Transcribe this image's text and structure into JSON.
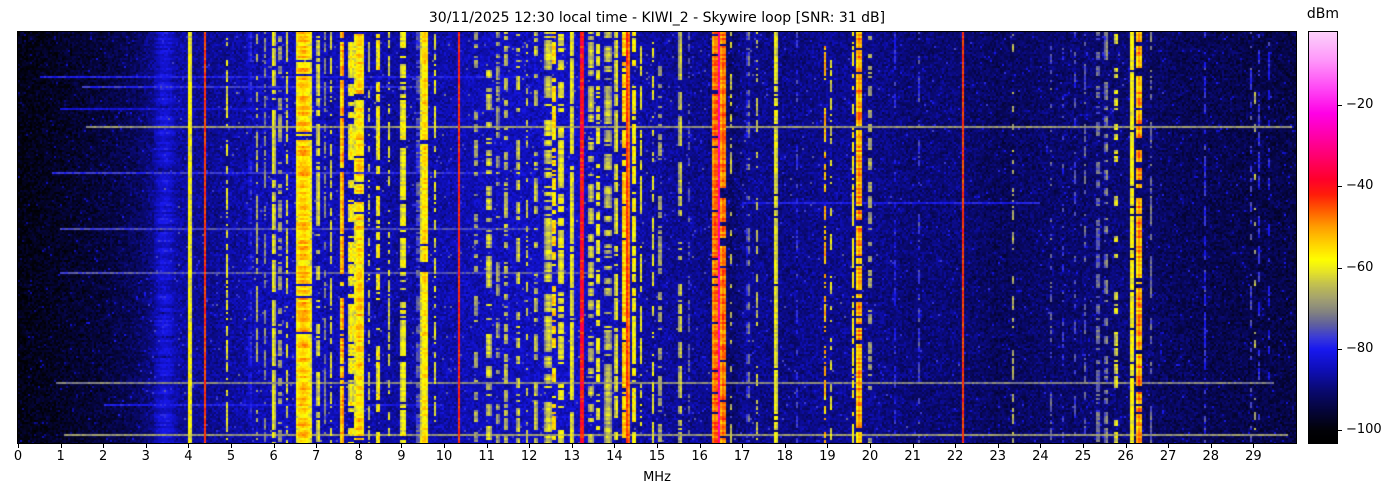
{
  "chart": {
    "title": "30/11/2025 12:30 local time - KIWI_2 - Skywire loop [SNR: 31 dB]",
    "xlabel": "MHz",
    "colorbar_label": "dBm"
  },
  "chart_data": {
    "type": "heatmap",
    "subtype": "radio-spectrum-waterfall",
    "title": "30/11/2025 12:30 local time - KIWI_2 - Skywire loop [SNR: 31 dB]",
    "station": "KIWI_2",
    "antenna": "Skywire loop",
    "snr_db": 31,
    "datetime_label": "30/11/2025 12:30 local time",
    "xlabel": "MHz",
    "ylabel": "",
    "x_range_mhz": [
      0,
      30
    ],
    "x_ticks": [
      0,
      1,
      2,
      3,
      4,
      5,
      6,
      7,
      8,
      9,
      10,
      11,
      12,
      13,
      14,
      15,
      16,
      17,
      18,
      19,
      20,
      21,
      22,
      23,
      24,
      25,
      26,
      27,
      28,
      29
    ],
    "colorbar": {
      "label": "dBm",
      "ticks": [
        -20,
        -40,
        -60,
        -80,
        -100
      ],
      "vmax": -2,
      "vmin": -103
    },
    "colormap_stops": [
      [
        -103,
        [
          0,
          0,
          0
        ]
      ],
      [
        -100,
        [
          2,
          2,
          8
        ]
      ],
      [
        -95,
        [
          5,
          5,
          60
        ]
      ],
      [
        -90,
        [
          10,
          10,
          115
        ]
      ],
      [
        -85,
        [
          15,
          15,
          185
        ]
      ],
      [
        -80,
        [
          25,
          25,
          240
        ]
      ],
      [
        -77,
        [
          60,
          60,
          215
        ]
      ],
      [
        -74,
        [
          95,
          95,
          160
        ]
      ],
      [
        -71,
        [
          130,
          130,
          130
        ]
      ],
      [
        -68,
        [
          160,
          158,
          115
        ]
      ],
      [
        -64,
        [
          195,
          193,
          80
        ]
      ],
      [
        -61,
        [
          230,
          228,
          40
        ]
      ],
      [
        -58,
        [
          255,
          255,
          0
        ]
      ],
      [
        -54,
        [
          255,
          210,
          0
        ]
      ],
      [
        -50,
        [
          255,
          160,
          0
        ]
      ],
      [
        -46,
        [
          255,
          95,
          0
        ]
      ],
      [
        -42,
        [
          255,
          30,
          10
        ]
      ],
      [
        -38,
        [
          255,
          0,
          45
        ]
      ],
      [
        -33,
        [
          255,
          0,
          105
        ]
      ],
      [
        -27,
        [
          255,
          0,
          175
        ]
      ],
      [
        -22,
        [
          255,
          0,
          230
        ]
      ],
      [
        -16,
        [
          255,
          70,
          245
        ]
      ],
      [
        -9,
        [
          255,
          150,
          250
        ]
      ],
      [
        -2,
        [
          252,
          210,
          250
        ]
      ]
    ],
    "noise_floor_dbm": [
      [
        0,
        -99
      ],
      [
        0.5,
        -98
      ],
      [
        1,
        -97
      ],
      [
        2,
        -95
      ],
      [
        2.8,
        -92
      ],
      [
        3.2,
        -88
      ],
      [
        3.8,
        -87
      ],
      [
        4.5,
        -88
      ],
      [
        5,
        -87
      ],
      [
        6,
        -85
      ],
      [
        7,
        -85
      ],
      [
        8,
        -86
      ],
      [
        9,
        -87
      ],
      [
        10,
        -86
      ],
      [
        11,
        -85
      ],
      [
        12,
        -84.5
      ],
      [
        13,
        -84
      ],
      [
        13.6,
        -85
      ],
      [
        14,
        -86
      ],
      [
        15,
        -87
      ],
      [
        15.7,
        -88
      ],
      [
        16.1,
        -88
      ],
      [
        16.75,
        -91
      ],
      [
        17.1,
        -88
      ],
      [
        18,
        -89
      ],
      [
        19,
        -88
      ],
      [
        20,
        -88.5
      ],
      [
        21,
        -90
      ],
      [
        22,
        -90
      ],
      [
        23,
        -92
      ],
      [
        24,
        -91
      ],
      [
        25,
        -90.5
      ],
      [
        26,
        -90
      ],
      [
        27,
        -92
      ],
      [
        28,
        -93
      ],
      [
        29,
        -93.5
      ],
      [
        30,
        -94
      ]
    ],
    "signals_format": "[center_mhz, half_width_mhz, level_dbm, duty_cycle, jitter_db]",
    "signals": [
      [
        3.45,
        0.28,
        -82,
        0.95,
        3
      ],
      [
        4.03,
        0.04,
        -57,
        1,
        3
      ],
      [
        4.38,
        0.03,
        -43,
        1,
        2
      ],
      [
        4.91,
        0.03,
        -61,
        0.55,
        3
      ],
      [
        5.45,
        0.03,
        -77,
        0.5,
        3
      ],
      [
        5.62,
        0.03,
        -66,
        0.5,
        3
      ],
      [
        5.8,
        0.04,
        -71,
        0.5,
        3
      ],
      [
        5.99,
        0.05,
        -60,
        0.8,
        3
      ],
      [
        6.15,
        0.04,
        -66,
        0.55,
        4
      ],
      [
        6.32,
        0.04,
        -62,
        0.6,
        4
      ],
      [
        6.7,
        0.18,
        -53,
        0.92,
        5
      ],
      [
        7.05,
        0.035,
        -60,
        0.65,
        3
      ],
      [
        7.22,
        0.03,
        -70,
        0.5,
        3
      ],
      [
        7.35,
        0.03,
        -63,
        0.5,
        3
      ],
      [
        7.62,
        0.05,
        -50,
        0.85,
        4
      ],
      [
        7.82,
        0.06,
        -57,
        0.7,
        4
      ],
      [
        8.02,
        0.12,
        -54,
        0.88,
        5
      ],
      [
        8.25,
        0.03,
        -64,
        0.4,
        3
      ],
      [
        8.46,
        0.035,
        -55,
        0.6,
        4
      ],
      [
        8.72,
        0.025,
        -62,
        0.45,
        3
      ],
      [
        9.05,
        0.08,
        -59,
        0.7,
        4
      ],
      [
        9.39,
        0.025,
        -70,
        0.6,
        3
      ],
      [
        9.55,
        0.09,
        -55,
        0.92,
        4
      ],
      [
        9.78,
        0.03,
        -61,
        0.5,
        3
      ],
      [
        10.36,
        0.035,
        -42,
        1,
        2
      ],
      [
        10.75,
        0.03,
        -64,
        0.3,
        4
      ],
      [
        11.05,
        0.06,
        -62,
        0.5,
        4
      ],
      [
        11.25,
        0.05,
        -67,
        0.5,
        3
      ],
      [
        11.45,
        0.04,
        -63,
        0.45,
        3
      ],
      [
        11.75,
        0.04,
        -62,
        0.5,
        3
      ],
      [
        11.95,
        0.04,
        -64,
        0.45,
        3
      ],
      [
        12.15,
        0.04,
        -63,
        0.45,
        3
      ],
      [
        12.45,
        0.08,
        -62,
        0.6,
        4
      ],
      [
        12.58,
        0.04,
        -53,
        0.55,
        4
      ],
      [
        12.75,
        0.08,
        -60,
        0.65,
        4
      ],
      [
        13.0,
        0.03,
        -57,
        0.9,
        3
      ],
      [
        13.24,
        0.05,
        -38,
        1,
        5
      ],
      [
        13.45,
        0.06,
        -63,
        0.6,
        4
      ],
      [
        13.62,
        0.04,
        -58,
        0.5,
        4
      ],
      [
        13.85,
        0.08,
        -64,
        0.6,
        4
      ],
      [
        14.05,
        0.04,
        -60,
        0.6,
        3
      ],
      [
        14.22,
        0.06,
        -53,
        0.8,
        4
      ],
      [
        14.31,
        0.035,
        -42,
        1,
        2
      ],
      [
        14.45,
        0.06,
        -57,
        0.7,
        4
      ],
      [
        14.62,
        0.04,
        -61,
        0.5,
        3
      ],
      [
        14.9,
        0.04,
        -61,
        0.5,
        3
      ],
      [
        15.07,
        0.04,
        -66,
        0.5,
        3
      ],
      [
        15.55,
        0.035,
        -62,
        0.6,
        3
      ],
      [
        15.75,
        0.03,
        -75,
        0.4,
        3
      ],
      [
        16.38,
        0.09,
        -46,
        0.95,
        4
      ],
      [
        16.47,
        0.03,
        -27,
        1,
        4
      ],
      [
        16.56,
        0.07,
        -46,
        0.9,
        4
      ],
      [
        16.75,
        0.03,
        -63,
        0.35,
        3
      ],
      [
        17.15,
        0.04,
        -72,
        0.4,
        3
      ],
      [
        17.35,
        0.03,
        -65,
        0.3,
        3
      ],
      [
        17.79,
        0.03,
        -57,
        0.95,
        3
      ],
      [
        18.3,
        0.03,
        -76,
        0.4,
        3
      ],
      [
        18.95,
        0.035,
        -52,
        0.4,
        4
      ],
      [
        19.1,
        0.03,
        -60,
        0.35,
        3
      ],
      [
        19.6,
        0.04,
        -58,
        0.6,
        3
      ],
      [
        19.75,
        0.07,
        -49,
        0.88,
        5
      ],
      [
        20.0,
        0.03,
        -63,
        0.35,
        3
      ],
      [
        20.6,
        0.02,
        -78,
        0.5,
        3
      ],
      [
        21.15,
        0.03,
        -77,
        0.4,
        3
      ],
      [
        22.17,
        0.025,
        -42,
        1,
        2
      ],
      [
        23.34,
        0.025,
        -63,
        0.35,
        3
      ],
      [
        24.25,
        0.025,
        -74,
        0.35,
        3
      ],
      [
        24.55,
        0.025,
        -74,
        0.3,
        3
      ],
      [
        24.8,
        0.025,
        -75,
        0.3,
        3
      ],
      [
        25.05,
        0.025,
        -74,
        0.3,
        3
      ],
      [
        25.35,
        0.05,
        -72,
        0.5,
        3
      ],
      [
        25.55,
        0.04,
        -70,
        0.5,
        3
      ],
      [
        25.78,
        0.03,
        -58,
        0.3,
        4
      ],
      [
        26.15,
        0.035,
        -56,
        0.95,
        3
      ],
      [
        26.32,
        0.06,
        -48,
        0.85,
        5
      ],
      [
        26.6,
        0.04,
        -73,
        0.4,
        3
      ],
      [
        27.87,
        0.025,
        -78,
        0.5,
        3
      ],
      [
        28.95,
        0.02,
        -76,
        0.3,
        3
      ],
      [
        29.05,
        0.02,
        -65,
        0.12,
        3
      ],
      [
        29.15,
        0.02,
        -75,
        0.3,
        3
      ],
      [
        29.35,
        0.02,
        -77,
        0.25,
        3
      ]
    ],
    "horizontal_streaks_format": "[row_fraction_of_height, from_mhz, to_mhz, level_dbm]",
    "horizontal_streaks": [
      [
        0.105,
        0.5,
        12,
        -80
      ],
      [
        0.129,
        1.5,
        9.5,
        -78
      ],
      [
        0.185,
        1,
        6.5,
        -82
      ],
      [
        0.231,
        1.6,
        29.9,
        -69
      ],
      [
        0.343,
        0.8,
        11,
        -78
      ],
      [
        0.416,
        17,
        24,
        -80
      ],
      [
        0.477,
        1,
        12,
        -76
      ],
      [
        0.586,
        1,
        13.5,
        -75
      ],
      [
        0.854,
        0.9,
        29.5,
        -71
      ],
      [
        0.907,
        2,
        10,
        -80
      ],
      [
        0.976,
        1.1,
        29.8,
        -69
      ]
    ],
    "legend_position": "right-colorbar",
    "grid": false
  }
}
